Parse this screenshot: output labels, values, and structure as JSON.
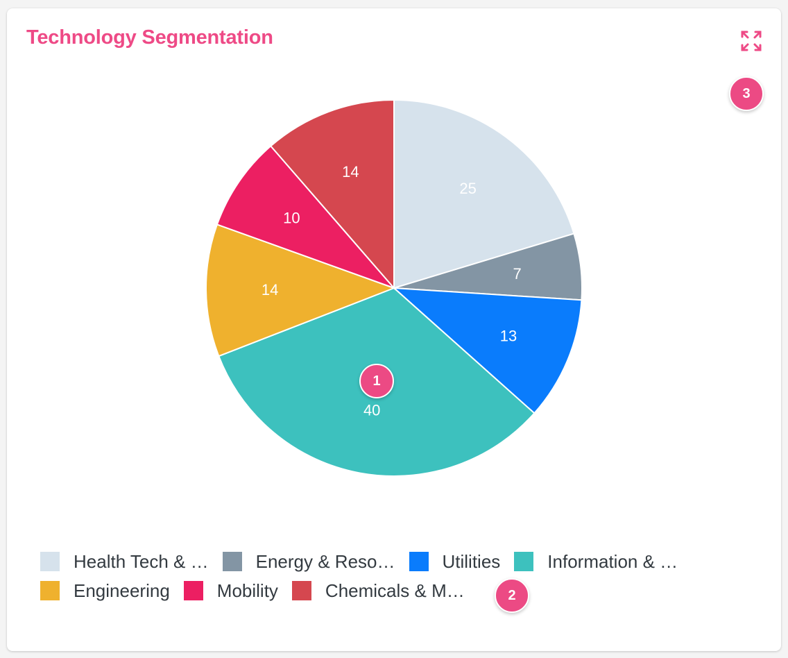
{
  "card": {
    "title": "Technology Segmentation",
    "expand_icon": "expand-icon"
  },
  "markers": [
    "1",
    "2",
    "3"
  ],
  "chart_data": {
    "type": "pie",
    "title": "Technology Segmentation",
    "legend_position": "bottom",
    "slices": [
      {
        "legend_label": "Health Tech & …",
        "value": 25,
        "value_label": "25",
        "color": "#d6e2ec"
      },
      {
        "legend_label": "Energy & Reso…",
        "value": 7,
        "value_label": "7",
        "color": "#8395a4"
      },
      {
        "legend_label": "Utilities",
        "value": 13,
        "value_label": "13",
        "color": "#0a7cfc"
      },
      {
        "legend_label": "Information & …",
        "value": 40,
        "value_label": "40",
        "color": "#3dc1be"
      },
      {
        "legend_label": "Engineering",
        "value": 14,
        "value_label": "14",
        "color": "#efb12e"
      },
      {
        "legend_label": "Mobility",
        "value": 10,
        "value_label": "10",
        "color": "#ec1f62"
      },
      {
        "legend_label": "Chemicals & M…",
        "value": 14,
        "value_label": "14",
        "color": "#d5474f"
      }
    ]
  }
}
